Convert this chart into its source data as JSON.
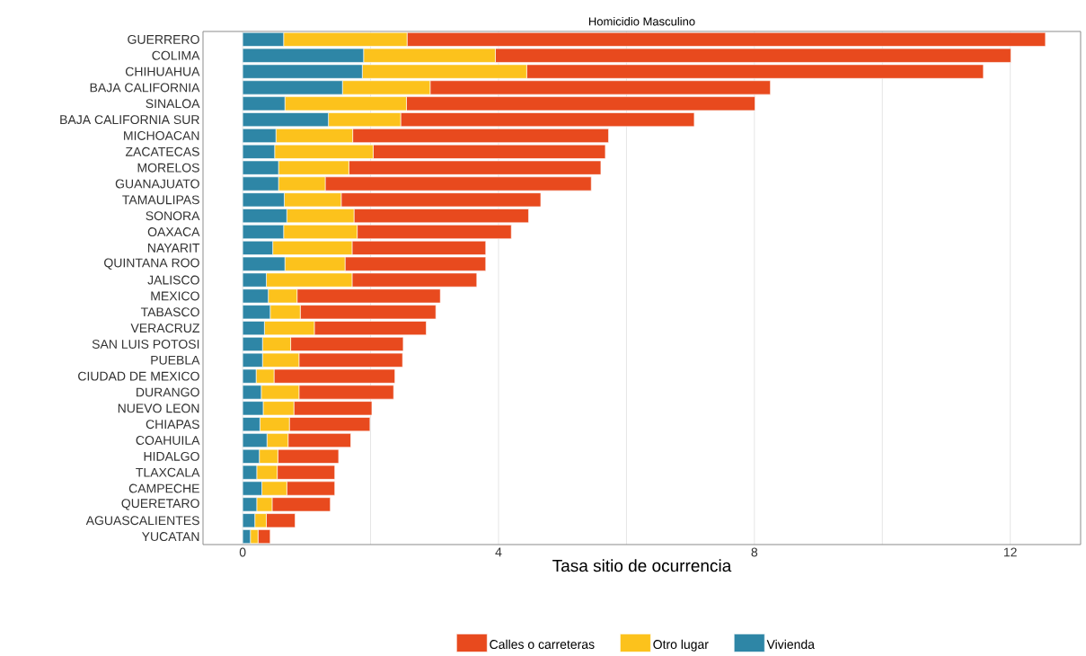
{
  "chart_data": {
    "type": "bar",
    "orientation": "horizontal",
    "stacked": true,
    "title": "Homicidio Masculino",
    "xlabel": "Tasa sitio de ocurrencia",
    "categories": [
      "GUERRERO",
      "COLIMA",
      "CHIHUAHUA",
      "BAJA CALIFORNIA",
      "SINALOA",
      "BAJA CALIFORNIA SUR",
      "MICHOACAN",
      "ZACATECAS",
      "MORELOS",
      "GUANAJUATO",
      "TAMAULIPAS",
      "SONORA",
      "OAXACA",
      "NAYARIT",
      "QUINTANA ROO",
      "JALISCO",
      "MEXICO",
      "TABASCO",
      "VERACRUZ",
      "SAN LUIS POTOSI",
      "PUEBLA",
      "CIUDAD DE MEXICO",
      "DURANGO",
      "NUEVO LEON",
      "CHIAPAS",
      "COAHUILA",
      "HIDALGO",
      "TLAXCALA",
      "CAMPECHE",
      "QUERETARO",
      "AGUASCALIENTES",
      "YUCATAN"
    ],
    "series": [
      {
        "name": "Vivienda",
        "color": "#2e86a6",
        "values": [
          0.64,
          1.89,
          1.87,
          1.56,
          0.66,
          1.34,
          0.52,
          0.5,
          0.56,
          0.56,
          0.65,
          0.69,
          0.64,
          0.47,
          0.66,
          0.37,
          0.4,
          0.43,
          0.34,
          0.31,
          0.31,
          0.21,
          0.29,
          0.32,
          0.27,
          0.38,
          0.26,
          0.22,
          0.3,
          0.22,
          0.19,
          0.12
        ]
      },
      {
        "name": "Otro lugar",
        "color": "#fcc21c",
        "values": [
          1.93,
          2.06,
          2.57,
          1.37,
          1.9,
          1.13,
          1.2,
          1.54,
          1.1,
          0.73,
          0.89,
          1.05,
          1.15,
          1.24,
          0.94,
          1.34,
          0.45,
          0.47,
          0.78,
          0.44,
          0.57,
          0.28,
          0.59,
          0.48,
          0.46,
          0.33,
          0.29,
          0.32,
          0.39,
          0.24,
          0.18,
          0.12
        ]
      },
      {
        "name": "Calles o carreteras",
        "color": "#e84a1e",
        "values": [
          9.98,
          8.06,
          7.14,
          5.32,
          5.45,
          4.59,
          4.0,
          3.63,
          3.94,
          4.16,
          3.12,
          2.73,
          2.41,
          2.09,
          2.2,
          1.95,
          2.24,
          2.12,
          1.75,
          1.76,
          1.62,
          1.89,
          1.48,
          1.22,
          1.26,
          0.98,
          0.95,
          0.9,
          0.75,
          0.91,
          0.45,
          0.19
        ]
      }
    ],
    "xlim": [
      -0.62,
      13.1
    ],
    "xticks": [
      0,
      {
        "value": 2,
        "label": null
      },
      4,
      {
        "value": 6,
        "label": null
      },
      8,
      {
        "value": 10,
        "label": null
      },
      12
    ],
    "grid": "x",
    "legend": "bottom"
  }
}
